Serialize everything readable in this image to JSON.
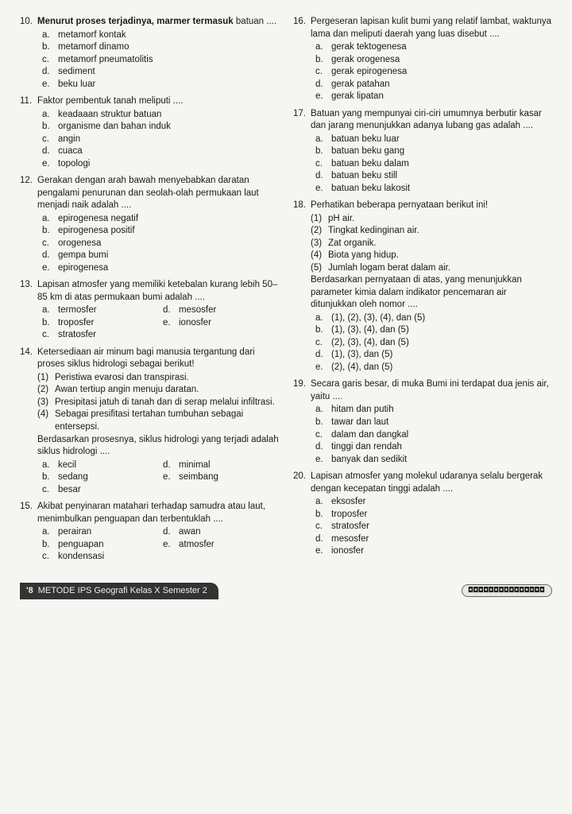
{
  "left": [
    {
      "n": "10.",
      "stem": "<b>Menurut proses terjadinya, marmer termasuk</b> batuan ....",
      "opts": [
        [
          "a.",
          "metamorf kontak"
        ],
        [
          "b.",
          "metamorf dinamo"
        ],
        [
          "c.",
          "metamorf pneumatolitis"
        ],
        [
          "d.",
          "sediment"
        ],
        [
          "e.",
          "beku luar"
        ]
      ]
    },
    {
      "n": "11.",
      "stem": "Faktor pembentuk tanah meliputi ....",
      "opts": [
        [
          "a.",
          "keadaaan struktur batuan"
        ],
        [
          "b.",
          "organisme dan bahan induk"
        ],
        [
          "c.",
          "angin"
        ],
        [
          "d.",
          "cuaca"
        ],
        [
          "e.",
          "topologi"
        ]
      ]
    },
    {
      "n": "12.",
      "stem": "Gerakan dengan arah bawah menyebabkan daratan pengalami penurunan dan seolah-olah permukaan laut menjadi naik adalah ....",
      "opts": [
        [
          "a.",
          "epirogenesa negatif"
        ],
        [
          "b.",
          "epirogenesa positif"
        ],
        [
          "c.",
          "orogenesa"
        ],
        [
          "d.",
          "gempa bumi"
        ],
        [
          "e.",
          "epirogenesa"
        ]
      ]
    },
    {
      "n": "13.",
      "stem": "Lapisan atmosfer yang memiliki ketebalan kurang lebih 50–85 km di atas permukaan bumi adalah ....",
      "opts2": {
        "l": [
          [
            "a.",
            "termosfer"
          ],
          [
            "b.",
            "troposfer"
          ],
          [
            "c.",
            "stratosfer"
          ]
        ],
        "r": [
          [
            "d.",
            "mesosfer"
          ],
          [
            "e.",
            "ionosfer"
          ]
        ]
      }
    },
    {
      "n": "14.",
      "stem": "Ketersediaan air minum bagi manusia tergantung dari proses siklus hidrologi sebagai berikut!",
      "sub": [
        [
          "(1)",
          "Peristiwa evarosi dan transpirasi."
        ],
        [
          "(2)",
          "Awan tertiup angin menuju daratan."
        ],
        [
          "(3)",
          "Presipitasi jatuh di tanah dan di serap melalui infiltrasi."
        ],
        [
          "(4)",
          "Sebagai presifitasi tertahan tumbuhan sebagai entersepsi."
        ]
      ],
      "stem2": "Berdasarkan prosesnya, siklus hidrologi yang terjadi adalah siklus hidrologi ....",
      "opts2": {
        "l": [
          [
            "a.",
            "kecil"
          ],
          [
            "b.",
            "sedang"
          ],
          [
            "c.",
            "besar"
          ]
        ],
        "r": [
          [
            "d.",
            "minimal"
          ],
          [
            "e.",
            "seimbang"
          ]
        ]
      }
    },
    {
      "n": "15.",
      "stem": "Akibat penyinaran matahari terhadap samudra atau laut, menimbulkan penguapan dan terbentuklah ....",
      "opts2": {
        "l": [
          [
            "a.",
            "perairan"
          ],
          [
            "b.",
            "penguapan"
          ],
          [
            "c.",
            "kondensasi"
          ]
        ],
        "r": [
          [
            "d.",
            "awan"
          ],
          [
            "e.",
            "atmosfer"
          ]
        ]
      }
    }
  ],
  "right": [
    {
      "n": "16.",
      "stem": "Pergeseran lapisan kulit bumi yang relatif lambat, waktunya lama dan meliputi daerah yang luas disebut ....",
      "opts": [
        [
          "a.",
          "gerak tektogenesa"
        ],
        [
          "b.",
          "gerak orogenesa"
        ],
        [
          "c.",
          "gerak epirogenesa"
        ],
        [
          "d.",
          "gerak patahan"
        ],
        [
          "e.",
          "gerak lipatan"
        ]
      ]
    },
    {
      "n": "17.",
      "stem": "Batuan yang mempunyai ciri-ciri umumnya berbutir kasar dan jarang menunjukkan adanya lubang gas adalah ....",
      "opts": [
        [
          "a.",
          "batuan beku luar"
        ],
        [
          "b.",
          "batuan beku gang"
        ],
        [
          "c.",
          "batuan beku dalam"
        ],
        [
          "d.",
          "batuan beku still"
        ],
        [
          "e.",
          "batuan beku lakosit"
        ]
      ]
    },
    {
      "n": "18.",
      "stem": "Perhatikan beberapa pernyataan berikut ini!",
      "sub": [
        [
          "(1)",
          "pH air."
        ],
        [
          "(2)",
          "Tingkat kedinginan air."
        ],
        [
          "(3)",
          "Zat organik."
        ],
        [
          "(4)",
          "Biota yang hidup."
        ],
        [
          "(5)",
          "Jumlah logam berat dalam air."
        ]
      ],
      "stem2": "Berdasarkan pernyataan di atas, yang menunjukkan parameter kimia dalam indikator pencemaran air ditunjukkan oleh nomor ....",
      "opts": [
        [
          "a.",
          "(1), (2), (3), (4), dan (5)"
        ],
        [
          "b.",
          "(1), (3), (4), dan (5)"
        ],
        [
          "c.",
          "(2), (3), (4), dan (5)"
        ],
        [
          "d.",
          "(1), (3), dan (5)"
        ],
        [
          "e.",
          "(2), (4), dan (5)"
        ]
      ]
    },
    {
      "n": "19.",
      "stem": "Secara garis besar, di muka Bumi ini terdapat dua jenis air, yaitu ....",
      "opts": [
        [
          "a.",
          "hitam dan putih"
        ],
        [
          "b.",
          "tawar dan laut"
        ],
        [
          "c.",
          "dalam dan dangkal"
        ],
        [
          "d.",
          "tinggi dan rendah"
        ],
        [
          "e.",
          "banyak dan sedikit"
        ]
      ]
    },
    {
      "n": "20.",
      "stem": "Lapisan atmosfer yang molekul udaranya selalu bergerak dengan kecepatan tinggi adalah ....",
      "opts": [
        [
          "a.",
          "eksosfer"
        ],
        [
          "b.",
          "troposfer"
        ],
        [
          "c.",
          "stratosfer"
        ],
        [
          "d.",
          "mesosfer"
        ],
        [
          "e.",
          "ionosfer"
        ]
      ]
    }
  ],
  "footer": {
    "page": "'8",
    "title": "METODE IPS Geografi Kelas X Semester 2",
    "deco": "◘◘◘◘◘◘◘◘◘◘◘◘◘◘◘"
  }
}
